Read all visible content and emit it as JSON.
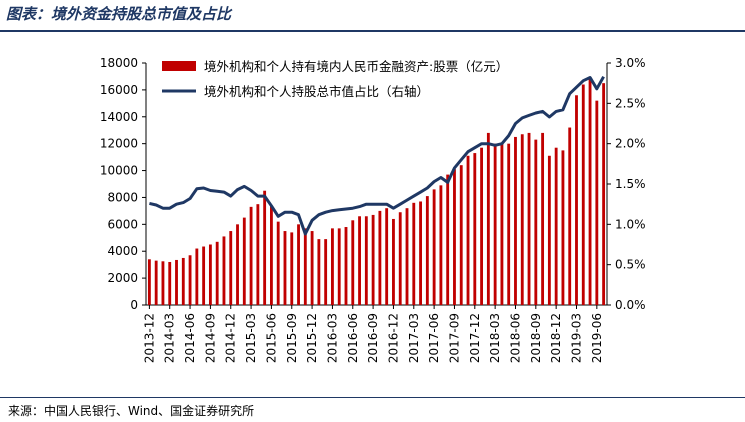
{
  "header": {
    "title": "图表：境外资金持股总市值及占比"
  },
  "footer": {
    "source": "来源：中国人民银行、Wind、国金证券研究所"
  },
  "chart_data": {
    "type": "bar",
    "series": [
      {
        "name": "境外机构和个人持有境内人民币金融资产:股票（亿元）",
        "type": "bar",
        "axis": "left",
        "color": "#c00000",
        "values": [
          3400,
          3300,
          3250,
          3200,
          3350,
          3500,
          3700,
          4200,
          4350,
          4500,
          4700,
          5100,
          5500,
          6000,
          6500,
          7300,
          7500,
          8500,
          7400,
          6200,
          5500,
          5400,
          6000,
          5700,
          5500,
          4900,
          4900,
          5700,
          5700,
          5800,
          6300,
          6600,
          6600,
          6700,
          7000,
          7200,
          6400,
          6900,
          7200,
          7600,
          7700,
          8100,
          8600,
          8900,
          9700,
          10100,
          10400,
          11100,
          11300,
          11700,
          12800,
          12000,
          12000,
          12000,
          12500,
          12700,
          12800,
          12300,
          12800,
          11100,
          11700,
          11500,
          13200,
          15600,
          16400,
          16900,
          15200,
          16500
        ]
      },
      {
        "name": "境外机构和个人持股总市值占比（右轴）",
        "type": "line",
        "axis": "right",
        "color": "#1f3864",
        "values": [
          1.26,
          1.24,
          1.2,
          1.2,
          1.25,
          1.27,
          1.32,
          1.44,
          1.45,
          1.42,
          1.41,
          1.4,
          1.35,
          1.43,
          1.47,
          1.42,
          1.35,
          1.35,
          1.23,
          1.1,
          1.15,
          1.15,
          1.12,
          0.88,
          1.05,
          1.12,
          1.15,
          1.17,
          1.18,
          1.19,
          1.2,
          1.22,
          1.25,
          1.25,
          1.25,
          1.25,
          1.2,
          1.25,
          1.3,
          1.35,
          1.4,
          1.45,
          1.53,
          1.58,
          1.52,
          1.7,
          1.8,
          1.9,
          1.95,
          2.0,
          2.0,
          1.98,
          2.0,
          2.1,
          2.25,
          2.32,
          2.35,
          2.38,
          2.4,
          2.33,
          2.4,
          2.42,
          2.62,
          2.7,
          2.78,
          2.82,
          2.68,
          2.83
        ]
      }
    ],
    "x_tick_labels": [
      "2013-12",
      "2014-03",
      "2014-06",
      "2014-09",
      "2014-12",
      "2015-03",
      "2015-06",
      "2015-09",
      "2015-12",
      "2016-03",
      "2016-06",
      "2016-09",
      "2016-12",
      "2017-03",
      "2017-06",
      "2017-09",
      "2017-12",
      "2018-03",
      "2018-06",
      "2018-09",
      "2018-12",
      "2019-03",
      "2019-06"
    ],
    "y_left": {
      "min": 0,
      "max": 18000,
      "ticks": [
        "0",
        "2000",
        "4000",
        "6000",
        "8000",
        "10000",
        "12000",
        "14000",
        "16000",
        "18000"
      ]
    },
    "y_right": {
      "min": 0,
      "max": 3.0,
      "ticks": [
        "0.0%",
        "0.5%",
        "1.0%",
        "1.5%",
        "2.0%",
        "2.5%",
        "3.0%"
      ]
    },
    "legend_position": "top-center",
    "grid": false
  }
}
